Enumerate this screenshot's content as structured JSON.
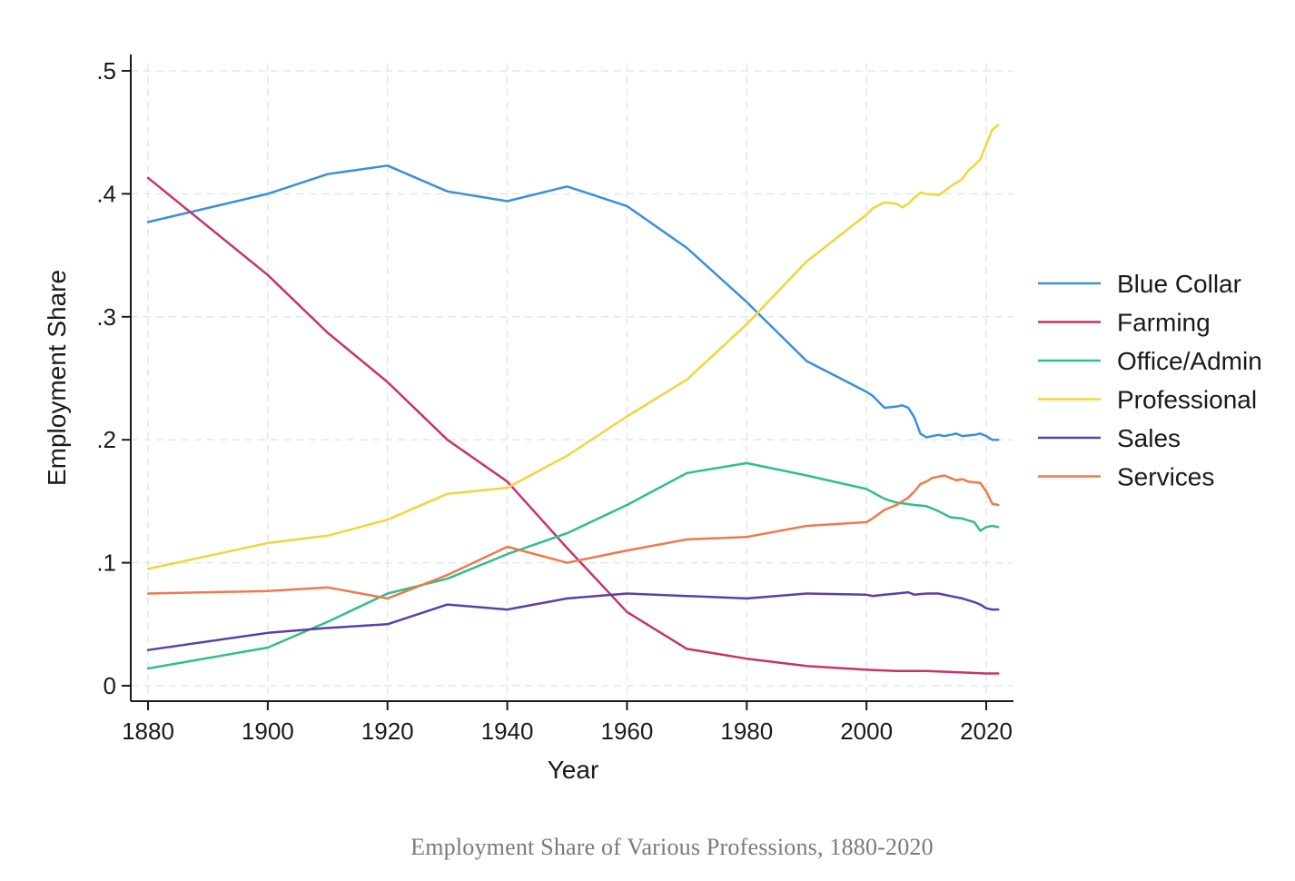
{
  "chart_data": {
    "type": "line",
    "title": "",
    "caption": "Employment Share of Various Professions, 1880-2020",
    "xlabel": "Year",
    "ylabel": "Employment Share",
    "xlim": [
      1880,
      2022
    ],
    "ylim": [
      0,
      0.5
    ],
    "x_ticks": [
      1880,
      1900,
      1920,
      1940,
      1960,
      1980,
      2000,
      2020
    ],
    "x_tick_labels": [
      "1880",
      "1900",
      "1920",
      "1940",
      "1960",
      "1980",
      "2000",
      "2020"
    ],
    "y_ticks": [
      0,
      0.1,
      0.2,
      0.3,
      0.4,
      0.5
    ],
    "y_tick_labels": [
      "0",
      ".1",
      ".2",
      ".3",
      ".4",
      ".5"
    ],
    "grid": true,
    "legend_position": "right",
    "series": [
      {
        "name": "Blue Collar",
        "color": "#3b8fdc",
        "points": [
          [
            1880,
            0.377
          ],
          [
            1900,
            0.4
          ],
          [
            1910,
            0.416
          ],
          [
            1920,
            0.423
          ],
          [
            1930,
            0.402
          ],
          [
            1940,
            0.394
          ],
          [
            1950,
            0.406
          ],
          [
            1960,
            0.39
          ],
          [
            1970,
            0.356
          ],
          [
            1980,
            0.312
          ],
          [
            1990,
            0.264
          ],
          [
            2000,
            0.239
          ],
          [
            2001,
            0.236
          ],
          [
            2003,
            0.226
          ],
          [
            2005,
            0.227
          ],
          [
            2006,
            0.228
          ],
          [
            2007,
            0.226
          ],
          [
            2008,
            0.218
          ],
          [
            2009,
            0.205
          ],
          [
            2010,
            0.202
          ],
          [
            2012,
            0.204
          ],
          [
            2013,
            0.203
          ],
          [
            2014,
            0.204
          ],
          [
            2015,
            0.205
          ],
          [
            2016,
            0.203
          ],
          [
            2018,
            0.204
          ],
          [
            2019,
            0.205
          ],
          [
            2020,
            0.203
          ],
          [
            2021,
            0.2
          ],
          [
            2022,
            0.2
          ]
        ]
      },
      {
        "name": "Farming",
        "color": "#c8336a",
        "points": [
          [
            1880,
            0.413
          ],
          [
            1900,
            0.334
          ],
          [
            1910,
            0.287
          ],
          [
            1920,
            0.247
          ],
          [
            1930,
            0.2
          ],
          [
            1940,
            0.166
          ],
          [
            1950,
            0.112
          ],
          [
            1960,
            0.06
          ],
          [
            1970,
            0.03
          ],
          [
            1980,
            0.022
          ],
          [
            1990,
            0.016
          ],
          [
            2000,
            0.013
          ],
          [
            2005,
            0.012
          ],
          [
            2010,
            0.012
          ],
          [
            2015,
            0.011
          ],
          [
            2020,
            0.01
          ],
          [
            2022,
            0.01
          ]
        ]
      },
      {
        "name": "Office/Admin",
        "color": "#2fbf8a",
        "points": [
          [
            1880,
            0.014
          ],
          [
            1900,
            0.031
          ],
          [
            1910,
            0.052
          ],
          [
            1920,
            0.075
          ],
          [
            1930,
            0.087
          ],
          [
            1940,
            0.107
          ],
          [
            1950,
            0.124
          ],
          [
            1960,
            0.147
          ],
          [
            1970,
            0.173
          ],
          [
            1980,
            0.181
          ],
          [
            1990,
            0.171
          ],
          [
            2000,
            0.16
          ],
          [
            2003,
            0.152
          ],
          [
            2005,
            0.149
          ],
          [
            2008,
            0.147
          ],
          [
            2010,
            0.146
          ],
          [
            2012,
            0.142
          ],
          [
            2014,
            0.137
          ],
          [
            2016,
            0.136
          ],
          [
            2018,
            0.133
          ],
          [
            2019,
            0.126
          ],
          [
            2020,
            0.129
          ],
          [
            2021,
            0.13
          ],
          [
            2022,
            0.129
          ]
        ]
      },
      {
        "name": "Professional",
        "color": "#f2d53c",
        "points": [
          [
            1880,
            0.095
          ],
          [
            1900,
            0.116
          ],
          [
            1910,
            0.122
          ],
          [
            1920,
            0.135
          ],
          [
            1930,
            0.156
          ],
          [
            1940,
            0.161
          ],
          [
            1950,
            0.187
          ],
          [
            1960,
            0.219
          ],
          [
            1970,
            0.249
          ],
          [
            1980,
            0.294
          ],
          [
            1990,
            0.345
          ],
          [
            2000,
            0.383
          ],
          [
            2001,
            0.388
          ],
          [
            2003,
            0.393
          ],
          [
            2005,
            0.392
          ],
          [
            2006,
            0.389
          ],
          [
            2007,
            0.392
          ],
          [
            2008,
            0.397
          ],
          [
            2009,
            0.401
          ],
          [
            2010,
            0.4
          ],
          [
            2012,
            0.399
          ],
          [
            2013,
            0.402
          ],
          [
            2014,
            0.406
          ],
          [
            2016,
            0.412
          ],
          [
            2017,
            0.419
          ],
          [
            2018,
            0.423
          ],
          [
            2019,
            0.428
          ],
          [
            2020,
            0.44
          ],
          [
            2021,
            0.452
          ],
          [
            2022,
            0.456
          ]
        ]
      },
      {
        "name": "Sales",
        "color": "#5b3fa8",
        "points": [
          [
            1880,
            0.029
          ],
          [
            1900,
            0.043
          ],
          [
            1910,
            0.047
          ],
          [
            1920,
            0.05
          ],
          [
            1930,
            0.066
          ],
          [
            1940,
            0.062
          ],
          [
            1950,
            0.071
          ],
          [
            1960,
            0.075
          ],
          [
            1970,
            0.073
          ],
          [
            1980,
            0.071
          ],
          [
            1990,
            0.075
          ],
          [
            2000,
            0.074
          ],
          [
            2001,
            0.073
          ],
          [
            2003,
            0.074
          ],
          [
            2005,
            0.075
          ],
          [
            2007,
            0.076
          ],
          [
            2008,
            0.074
          ],
          [
            2010,
            0.075
          ],
          [
            2012,
            0.075
          ],
          [
            2014,
            0.073
          ],
          [
            2016,
            0.071
          ],
          [
            2018,
            0.068
          ],
          [
            2019,
            0.066
          ],
          [
            2020,
            0.063
          ],
          [
            2021,
            0.062
          ],
          [
            2022,
            0.062
          ]
        ]
      },
      {
        "name": "Services",
        "color": "#ec7a4c",
        "points": [
          [
            1880,
            0.075
          ],
          [
            1900,
            0.077
          ],
          [
            1910,
            0.08
          ],
          [
            1920,
            0.071
          ],
          [
            1930,
            0.09
          ],
          [
            1940,
            0.113
          ],
          [
            1950,
            0.1
          ],
          [
            1960,
            0.11
          ],
          [
            1970,
            0.119
          ],
          [
            1980,
            0.121
          ],
          [
            1990,
            0.13
          ],
          [
            2000,
            0.133
          ],
          [
            2001,
            0.136
          ],
          [
            2003,
            0.143
          ],
          [
            2005,
            0.147
          ],
          [
            2007,
            0.153
          ],
          [
            2008,
            0.158
          ],
          [
            2009,
            0.164
          ],
          [
            2010,
            0.166
          ],
          [
            2011,
            0.169
          ],
          [
            2013,
            0.171
          ],
          [
            2014,
            0.169
          ],
          [
            2015,
            0.167
          ],
          [
            2016,
            0.168
          ],
          [
            2017,
            0.166
          ],
          [
            2019,
            0.165
          ],
          [
            2020,
            0.158
          ],
          [
            2021,
            0.148
          ],
          [
            2022,
            0.147
          ]
        ]
      }
    ]
  }
}
